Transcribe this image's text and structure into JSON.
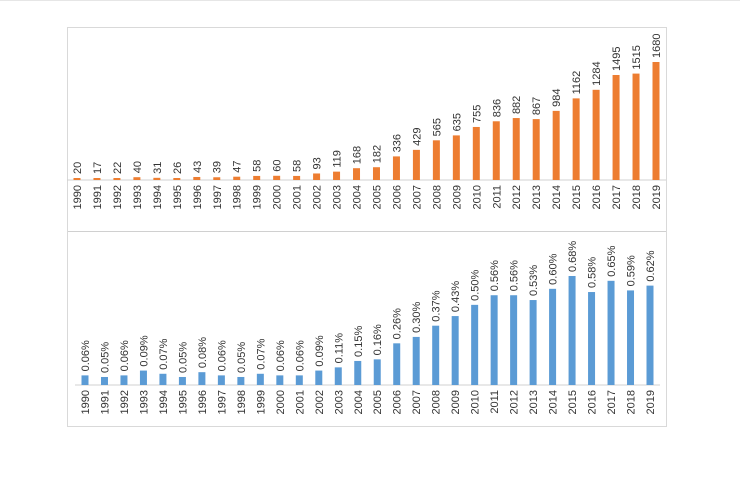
{
  "chart_data": [
    {
      "type": "bar",
      "title": "",
      "xlabel": "",
      "ylabel": "",
      "color": "#ED7D31",
      "categories": [
        "1990",
        "1991",
        "1992",
        "1993",
        "1994",
        "1995",
        "1996",
        "1997",
        "1998",
        "1999",
        "2000",
        "2001",
        "2002",
        "2003",
        "2004",
        "2005",
        "2006",
        "2007",
        "2008",
        "2009",
        "2010",
        "2011",
        "2012",
        "2013",
        "2014",
        "2015",
        "2016",
        "2017",
        "2018",
        "2019"
      ],
      "values": [
        20,
        17,
        22,
        40,
        31,
        26,
        43,
        39,
        47,
        58,
        60,
        58,
        93,
        119,
        168,
        182,
        336,
        429,
        565,
        635,
        755,
        836,
        882,
        867,
        984,
        1162,
        1284,
        1495,
        1515,
        1680
      ],
      "labels": [
        "20",
        "17",
        "22",
        "40",
        "31",
        "26",
        "43",
        "39",
        "47",
        "58",
        "60",
        "58",
        "93",
        "119",
        "168",
        "182",
        "336",
        "429",
        "565",
        "635",
        "755",
        "836",
        "882",
        "867",
        "984",
        "1162",
        "1284",
        "1495",
        "1515",
        "1680"
      ],
      "ylim": [
        0,
        1680
      ]
    },
    {
      "type": "bar",
      "title": "",
      "xlabel": "",
      "ylabel": "",
      "color": "#5B9BD5",
      "categories": [
        "1990",
        "1991",
        "1992",
        "1993",
        "1994",
        "1995",
        "1996",
        "1997",
        "1998",
        "1999",
        "2000",
        "2001",
        "2002",
        "2003",
        "2004",
        "2005",
        "2006",
        "2007",
        "2008",
        "2009",
        "2010",
        "2011",
        "2012",
        "2013",
        "2014",
        "2015",
        "2016",
        "2017",
        "2018",
        "2019"
      ],
      "values": [
        0.06,
        0.05,
        0.06,
        0.09,
        0.07,
        0.05,
        0.08,
        0.06,
        0.05,
        0.07,
        0.06,
        0.06,
        0.09,
        0.11,
        0.15,
        0.16,
        0.26,
        0.3,
        0.37,
        0.43,
        0.5,
        0.56,
        0.56,
        0.53,
        0.6,
        0.68,
        0.58,
        0.65,
        0.59,
        0.62
      ],
      "labels": [
        "0.06%",
        "0.05%",
        "0.06%",
        "0.09%",
        "0.07%",
        "0.05%",
        "0.08%",
        "0.06%",
        "0.05%",
        "0.07%",
        "0.06%",
        "0.06%",
        "0.09%",
        "0.11%",
        "0.15%",
        "0.16%",
        "0.26%",
        "0.30%",
        "0.37%",
        "0.43%",
        "0.50%",
        "0.56%",
        "0.56%",
        "0.53%",
        "0.60%",
        "0.68%",
        "0.58%",
        "0.65%",
        "0.59%",
        "0.62%"
      ],
      "ylim": [
        0,
        0.68
      ]
    }
  ]
}
